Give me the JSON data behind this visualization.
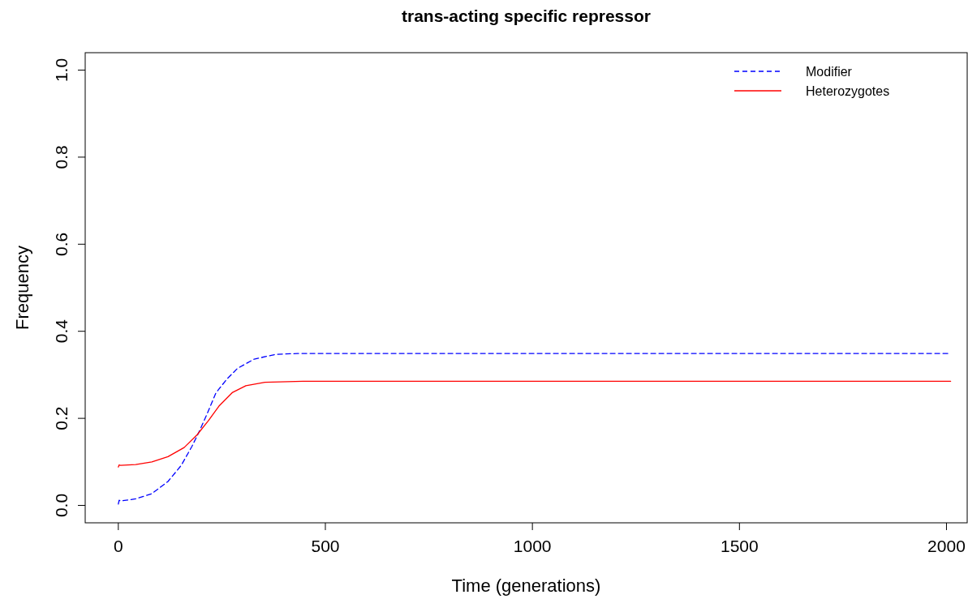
{
  "chart_data": {
    "type": "line",
    "title": "trans-acting specific repressor",
    "xlabel": "Time (generations)",
    "ylabel": "Frequency",
    "xlim": [
      -80,
      2050
    ],
    "ylim": [
      -0.04,
      1.04
    ],
    "xticks": [
      0,
      500,
      1000,
      1500,
      2000
    ],
    "yticks": [
      {
        "value": 0,
        "label": "0.0"
      },
      0.2,
      0.4,
      0.6,
      0.8,
      {
        "value": 1,
        "label": "1.0"
      }
    ],
    "grid": false,
    "legend": "top right",
    "marker": "none",
    "series": [
      {
        "name": "Modifier",
        "color": "#0000ff",
        "line_style": "dashed",
        "x": [
          0,
          2,
          5,
          42,
          81,
          120,
          152,
          178,
          197,
          217,
          236,
          262,
          288,
          328,
          380,
          433,
          700,
          1000,
          1500,
          2010
        ],
        "values": [
          0.003,
          0.012,
          0.01,
          0.015,
          0.027,
          0.055,
          0.092,
          0.136,
          0.173,
          0.216,
          0.259,
          0.29,
          0.315,
          0.336,
          0.347,
          0.349,
          0.349,
          0.349,
          0.349,
          0.349
        ]
      },
      {
        "name": "Heterozygotes",
        "color": "#ff0000",
        "line_style": "solid",
        "x": [
          0,
          2,
          5,
          42,
          81,
          120,
          159,
          191,
          217,
          243,
          275,
          308,
          354,
          446,
          700,
          1000,
          1500,
          2010
        ],
        "values": [
          0.088,
          0.093,
          0.092,
          0.094,
          0.1,
          0.112,
          0.133,
          0.163,
          0.194,
          0.228,
          0.259,
          0.275,
          0.283,
          0.285,
          0.285,
          0.285,
          0.285,
          0.285
        ]
      }
    ]
  }
}
